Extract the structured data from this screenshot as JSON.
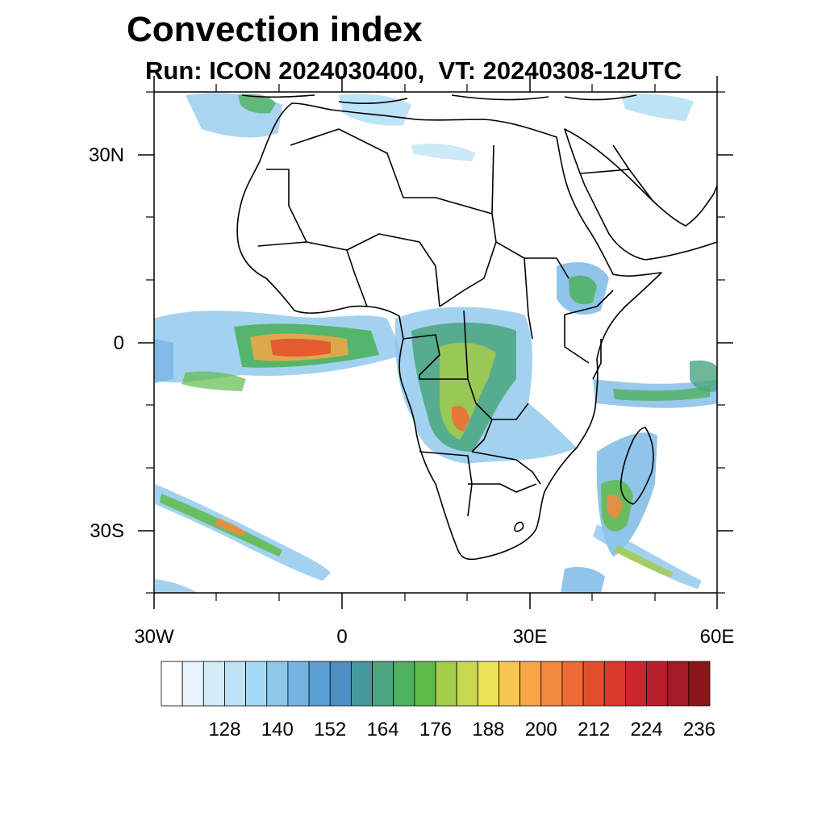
{
  "title": "Convection index",
  "subtitle": "Run: ICON 2024030400,  VT: 20240308-12UTC",
  "map": {
    "lon_range": [
      -30,
      60
    ],
    "lat_range": [
      -40,
      40
    ],
    "lon_tick_labels": [
      "30W",
      "0",
      "30E",
      "60E"
    ],
    "lat_tick_labels": [
      "30N",
      "0",
      "30S"
    ],
    "grid": false
  },
  "colorbar": {
    "orientation": "horizontal",
    "labels": [
      "128",
      "140",
      "152",
      "164",
      "176",
      "188",
      "200",
      "212",
      "224",
      "236"
    ],
    "colors": [
      "#ffffff",
      "#e8f5fc",
      "#d3ecf8",
      "#bfe3f6",
      "#a6d9f3",
      "#8cc7ec",
      "#75b5e4",
      "#5a9fd6",
      "#4b8fc4",
      "#46989f",
      "#4aa67f",
      "#4db15e",
      "#5fbb4a",
      "#a5cd4c",
      "#cad952",
      "#ede357",
      "#f8c752",
      "#f6a647",
      "#f3893f",
      "#ee6a35",
      "#e34f2c",
      "#d93a2c",
      "#cb262d",
      "#b81e2b",
      "#a41a26",
      "#8b1518"
    ]
  }
}
